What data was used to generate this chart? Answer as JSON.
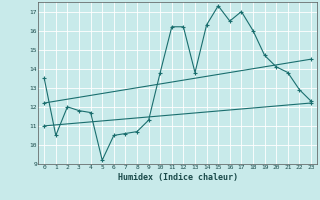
{
  "xlabel": "Humidex (Indice chaleur)",
  "bg_color": "#c8eaea",
  "grid_color": "#b0d8d8",
  "line_color": "#1a6e6e",
  "line1_x": [
    0,
    1,
    2,
    3,
    4,
    5,
    6,
    7,
    8,
    9,
    10,
    11,
    12,
    13,
    14,
    15,
    16,
    17,
    18,
    19,
    20,
    21,
    22,
    23
  ],
  "line1_y": [
    13.5,
    10.5,
    12.0,
    11.8,
    11.7,
    9.2,
    10.5,
    10.6,
    10.7,
    11.3,
    13.8,
    16.2,
    16.2,
    13.8,
    16.3,
    17.3,
    16.5,
    17.0,
    16.0,
    14.7,
    14.1,
    13.8,
    12.9,
    12.3
  ],
  "line2_x": [
    0,
    23
  ],
  "line2_y": [
    12.2,
    14.5
  ],
  "line3_x": [
    0,
    23
  ],
  "line3_y": [
    11.0,
    12.2
  ],
  "ylim": [
    9,
    17.5
  ],
  "xlim": [
    -0.5,
    23.5
  ],
  "yticks": [
    9,
    10,
    11,
    12,
    13,
    14,
    15,
    16,
    17
  ],
  "xticks": [
    0,
    1,
    2,
    3,
    4,
    5,
    6,
    7,
    8,
    9,
    10,
    11,
    12,
    13,
    14,
    15,
    16,
    17,
    18,
    19,
    20,
    21,
    22,
    23
  ]
}
